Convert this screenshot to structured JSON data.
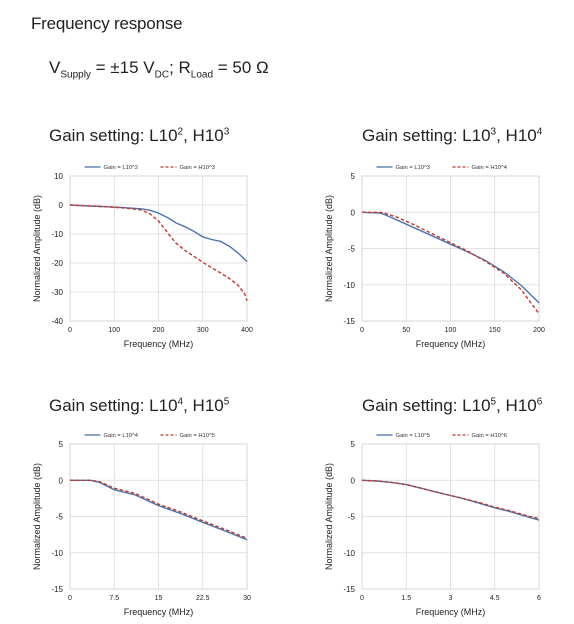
{
  "page": {
    "heading": "Frequency response",
    "conditions": {
      "v_main": "V",
      "v_sub": "Supply",
      "v_mid": " = ±15 V",
      "v_unit_sub": "DC",
      "sep": "; R",
      "r_sub": "Load",
      "r_val": " = 50 Ω"
    }
  },
  "chart_data": [
    {
      "type": "line",
      "title": {
        "prefix": "Gain setting: L10",
        "sup1": "2",
        "mid": ", H10",
        "sup2": "3"
      },
      "xlabel": "Frequency (MHz)",
      "ylabel": "Normalized Amplitude (dB)",
      "xlim": [
        0,
        400
      ],
      "ylim": [
        -40,
        10
      ],
      "xticks": [
        0,
        100,
        200,
        300,
        400
      ],
      "yticks": [
        10,
        0,
        -10,
        -20,
        -30,
        -40
      ],
      "grid": true,
      "legend": "top",
      "series": [
        {
          "name": "Gain = L10^2",
          "color": "#4a74b0",
          "dash": false,
          "x": [
            0,
            40,
            80,
            120,
            160,
            180,
            200,
            220,
            240,
            260,
            280,
            300,
            320,
            340,
            360,
            380,
            400
          ],
          "y": [
            0,
            -0.3,
            -0.6,
            -0.9,
            -1.3,
            -1.8,
            -2.8,
            -4.3,
            -6.2,
            -7.5,
            -9.1,
            -11.0,
            -11.9,
            -12.5,
            -14.2,
            -16.6,
            -19.5
          ]
        },
        {
          "name": "Gain = H10^3",
          "color": "#c0392b",
          "dash": true,
          "x": [
            0,
            40,
            80,
            120,
            160,
            180,
            200,
            220,
            240,
            260,
            280,
            300,
            320,
            340,
            360,
            380,
            395,
            400
          ],
          "y": [
            0,
            -0.3,
            -0.6,
            -1.0,
            -1.7,
            -3.0,
            -5.5,
            -9.5,
            -13.2,
            -15.7,
            -17.7,
            -19.8,
            -21.6,
            -23.4,
            -25.3,
            -27.7,
            -30.8,
            -33.0
          ]
        }
      ]
    },
    {
      "type": "line",
      "title": {
        "prefix": "Gain setting: L10",
        "sup1": "3",
        "mid": ", H10",
        "sup2": "4"
      },
      "xlabel": "Frequency (MHz)",
      "ylabel": "Normalized Amplitude (dB)",
      "xlim": [
        0,
        200
      ],
      "ylim": [
        -15,
        5
      ],
      "xticks": [
        0,
        50,
        100,
        150,
        200
      ],
      "yticks": [
        5,
        0,
        -5,
        -10,
        -15
      ],
      "grid": true,
      "legend": "top",
      "series": [
        {
          "name": "Gain = L10^3",
          "color": "#4a74b0",
          "dash": false,
          "x": [
            0,
            20,
            25,
            40,
            60,
            80,
            100,
            120,
            140,
            160,
            180,
            200
          ],
          "y": [
            0,
            -0.1,
            -0.3,
            -1.1,
            -2.2,
            -3.3,
            -4.4,
            -5.5,
            -6.7,
            -8.2,
            -10.1,
            -12.5
          ]
        },
        {
          "name": "Gain = H10^4",
          "color": "#c0392b",
          "dash": true,
          "x": [
            0,
            20,
            25,
            40,
            60,
            80,
            100,
            120,
            140,
            160,
            180,
            200
          ],
          "y": [
            0,
            0,
            -0.1,
            -0.7,
            -1.8,
            -3.0,
            -4.2,
            -5.4,
            -6.8,
            -8.4,
            -10.7,
            -14.0
          ]
        }
      ]
    },
    {
      "type": "line",
      "title": {
        "prefix": "Gain setting: L10",
        "sup1": "4",
        "mid": ", H10",
        "sup2": "5"
      },
      "xlabel": "Frequency (MHz)",
      "ylabel": "Normalized Amplitude (dB)",
      "xlim": [
        0,
        30
      ],
      "ylim": [
        -15,
        5
      ],
      "xticks": [
        0,
        7.5,
        15,
        22.5,
        30
      ],
      "yticks": [
        5,
        0,
        -5,
        -10,
        -15
      ],
      "grid": true,
      "legend": "top",
      "series": [
        {
          "name": "Gain = L10^4",
          "color": "#4a74b0",
          "dash": false,
          "x": [
            0,
            3.5,
            5,
            7.5,
            11,
            15,
            18.8,
            22.5,
            26.3,
            30
          ],
          "y": [
            0,
            0,
            -0.3,
            -1.3,
            -2.0,
            -3.5,
            -4.6,
            -5.8,
            -7.0,
            -8.2
          ]
        },
        {
          "name": "Gain = H10^5",
          "color": "#c0392b",
          "dash": true,
          "x": [
            0,
            3.5,
            5,
            7.5,
            11,
            15,
            18.8,
            22.5,
            26.3,
            30
          ],
          "y": [
            0,
            0,
            -0.2,
            -1.1,
            -1.8,
            -3.3,
            -4.4,
            -5.6,
            -6.8,
            -8.0
          ]
        }
      ]
    },
    {
      "type": "line",
      "title": {
        "prefix": "Gain setting: L10",
        "sup1": "5",
        "mid": ", H10",
        "sup2": "6"
      },
      "xlabel": "Frequency (MHz)",
      "ylabel": "Normalized Amplitude (dB)",
      "xlim": [
        0,
        6
      ],
      "ylim": [
        -15,
        5
      ],
      "xticks": [
        0,
        1.5,
        3,
        4.5,
        6
      ],
      "yticks": [
        5,
        0,
        -5,
        -10,
        -15
      ],
      "grid": true,
      "legend": "top",
      "series": [
        {
          "name": "Gain = L10^5",
          "color": "#4a74b0",
          "dash": false,
          "x": [
            0,
            0.5,
            1,
            1.5,
            2,
            2.5,
            3,
            3.5,
            4,
            4.5,
            5,
            5.5,
            6
          ],
          "y": [
            0,
            -0.1,
            -0.3,
            -0.6,
            -1.1,
            -1.6,
            -2.1,
            -2.6,
            -3.2,
            -3.8,
            -4.3,
            -4.9,
            -5.5
          ]
        },
        {
          "name": "Gain = H10^6",
          "color": "#c0392b",
          "dash": true,
          "x": [
            0,
            0.5,
            1,
            1.5,
            2,
            2.5,
            3,
            3.5,
            4,
            4.5,
            5,
            5.5,
            6
          ],
          "y": [
            0,
            -0.1,
            -0.3,
            -0.6,
            -1.1,
            -1.6,
            -2.1,
            -2.6,
            -3.1,
            -3.7,
            -4.2,
            -4.8,
            -5.3
          ]
        }
      ]
    }
  ]
}
